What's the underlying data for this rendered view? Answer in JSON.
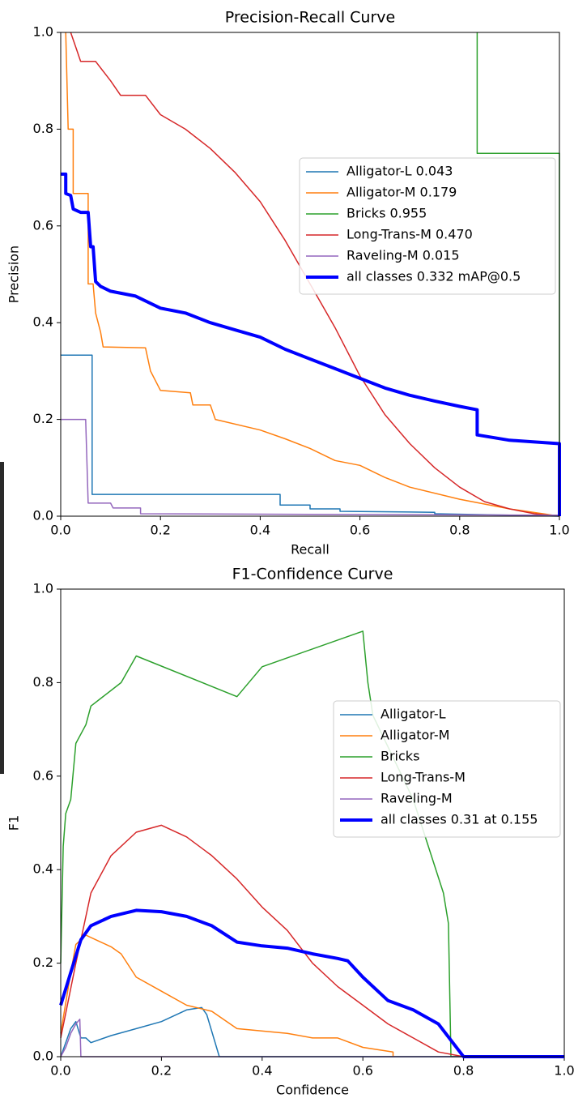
{
  "chart_data": [
    {
      "type": "line",
      "title": "Precision-Recall Curve",
      "xlabel": "Recall",
      "ylabel": "Precision",
      "xlim": [
        0,
        1
      ],
      "ylim": [
        0,
        1
      ],
      "xticks": [
        {
          "value": 0,
          "label": "0.0"
        },
        0.2,
        0.4,
        0.6,
        0.8,
        {
          "value": 1,
          "label": "1.0"
        }
      ],
      "yticks": [
        {
          "value": 0,
          "label": "0.0"
        },
        0.2,
        0.4,
        0.6,
        0.8,
        {
          "value": 1,
          "label": "1.0"
        }
      ],
      "legend": "center right",
      "series": [
        {
          "name": "Alligator-L 0.043",
          "color": "#1f77b4",
          "linewidth": 1.5,
          "x": [
            0,
            0.063,
            0.063,
            0.44,
            0.44,
            0.5,
            0.5,
            0.56,
            0.56,
            0.75,
            0.75,
            1.0
          ],
          "values": [
            0.333,
            0.333,
            0.045,
            0.045,
            0.023,
            0.023,
            0.015,
            0.015,
            0.01,
            0.008,
            0.005,
            0.0
          ]
        },
        {
          "name": "Alligator-M 0.179",
          "color": "#ff7f0e",
          "linewidth": 1.5,
          "x": [
            0.01,
            0.015,
            0.025,
            0.025,
            0.055,
            0.055,
            0.065,
            0.07,
            0.08,
            0.085,
            0.17,
            0.18,
            0.2,
            0.26,
            0.265,
            0.3,
            0.31,
            0.4,
            0.45,
            0.5,
            0.55,
            0.6,
            0.65,
            0.7,
            0.8,
            0.9,
            1.0
          ],
          "values": [
            1.0,
            0.8,
            0.8,
            0.667,
            0.667,
            0.48,
            0.48,
            0.42,
            0.38,
            0.35,
            0.348,
            0.3,
            0.26,
            0.255,
            0.23,
            0.23,
            0.2,
            0.178,
            0.16,
            0.14,
            0.115,
            0.105,
            0.08,
            0.06,
            0.035,
            0.015,
            0.0
          ]
        },
        {
          "name": "Bricks 0.955",
          "color": "#2ca02c",
          "linewidth": 1.5,
          "x": [
            0.835,
            0.835,
            1.0,
            1.0
          ],
          "values": [
            1.0,
            0.75,
            0.75,
            0.0
          ]
        },
        {
          "name": "Long-Trans-M 0.470",
          "color": "#d62728",
          "linewidth": 1.5,
          "x": [
            0.02,
            0.03,
            0.04,
            0.07,
            0.1,
            0.12,
            0.17,
            0.2,
            0.25,
            0.3,
            0.35,
            0.4,
            0.45,
            0.5,
            0.55,
            0.6,
            0.65,
            0.7,
            0.75,
            0.8,
            0.85,
            0.9,
            0.95,
            1.0
          ],
          "values": [
            1.0,
            0.97,
            0.94,
            0.94,
            0.9,
            0.87,
            0.87,
            0.83,
            0.8,
            0.76,
            0.71,
            0.65,
            0.57,
            0.48,
            0.39,
            0.29,
            0.21,
            0.15,
            0.1,
            0.06,
            0.03,
            0.015,
            0.005,
            0.0
          ]
        },
        {
          "name": "Raveling-M 0.015",
          "color": "#9467bd",
          "linewidth": 1.5,
          "x": [
            0,
            0.05,
            0.055,
            0.1,
            0.105,
            0.16,
            0.16,
            1.0
          ],
          "values": [
            0.2,
            0.2,
            0.027,
            0.027,
            0.017,
            0.017,
            0.005,
            0.002
          ]
        },
        {
          "name": "all classes 0.332 mAP@0.5",
          "color": "#0000ff",
          "linewidth": 4,
          "x": [
            0,
            0.01,
            0.01,
            0.02,
            0.025,
            0.04,
            0.055,
            0.06,
            0.065,
            0.07,
            0.08,
            0.1,
            0.15,
            0.2,
            0.25,
            0.3,
            0.35,
            0.4,
            0.45,
            0.5,
            0.55,
            0.6,
            0.65,
            0.7,
            0.75,
            0.8,
            0.835,
            0.835,
            0.9,
            1.0,
            1.0
          ],
          "values": [
            0.707,
            0.707,
            0.667,
            0.663,
            0.635,
            0.628,
            0.628,
            0.557,
            0.557,
            0.485,
            0.475,
            0.465,
            0.455,
            0.43,
            0.42,
            0.4,
            0.385,
            0.37,
            0.345,
            0.325,
            0.305,
            0.285,
            0.265,
            0.25,
            0.238,
            0.227,
            0.22,
            0.168,
            0.157,
            0.15,
            0.0
          ]
        }
      ]
    },
    {
      "type": "line",
      "title": "F1-Confidence Curve",
      "xlabel": "Confidence",
      "ylabel": "F1",
      "xlim": [
        0,
        1
      ],
      "ylim": [
        0,
        1
      ],
      "xticks": [
        {
          "value": 0,
          "label": "0.0"
        },
        0.2,
        0.4,
        0.6,
        0.8,
        {
          "value": 1,
          "label": "1.0"
        }
      ],
      "yticks": [
        {
          "value": 0,
          "label": "0.0"
        },
        0.2,
        0.4,
        0.6,
        0.8,
        {
          "value": 1,
          "label": "1.0"
        }
      ],
      "legend": "center right",
      "series": [
        {
          "name": "Alligator-L",
          "color": "#1f77b4",
          "linewidth": 1.5,
          "x": [
            0,
            0.01,
            0.02,
            0.03,
            0.04,
            0.05,
            0.06,
            0.1,
            0.15,
            0.2,
            0.25,
            0.28,
            0.29,
            0.315,
            1.0
          ],
          "values": [
            0,
            0.03,
            0.06,
            0.075,
            0.04,
            0.04,
            0.03,
            0.045,
            0.06,
            0.075,
            0.1,
            0.105,
            0.09,
            0,
            0
          ]
        },
        {
          "name": "Alligator-M",
          "color": "#ff7f0e",
          "linewidth": 1.5,
          "x": [
            0,
            0.02,
            0.03,
            0.05,
            0.07,
            0.1,
            0.12,
            0.15,
            0.2,
            0.25,
            0.3,
            0.35,
            0.45,
            0.5,
            0.55,
            0.6,
            0.66,
            0.66
          ],
          "values": [
            0.05,
            0.18,
            0.24,
            0.26,
            0.25,
            0.235,
            0.22,
            0.17,
            0.14,
            0.11,
            0.097,
            0.06,
            0.05,
            0.04,
            0.04,
            0.02,
            0.01,
            0
          ]
        },
        {
          "name": "Bricks",
          "color": "#2ca02c",
          "linewidth": 1.5,
          "x": [
            0,
            0.005,
            0.01,
            0.02,
            0.03,
            0.05,
            0.06,
            0.12,
            0.15,
            0.35,
            0.4,
            0.6,
            0.61,
            0.62,
            0.7,
            0.76,
            0.77,
            0.775,
            1.0
          ],
          "values": [
            0.2,
            0.45,
            0.52,
            0.55,
            0.67,
            0.71,
            0.75,
            0.8,
            0.857,
            0.77,
            0.834,
            0.91,
            0.8,
            0.73,
            0.55,
            0.35,
            0.285,
            0,
            0
          ]
        },
        {
          "name": "Long-Trans-M",
          "color": "#d62728",
          "linewidth": 1.5,
          "x": [
            0,
            0.03,
            0.06,
            0.1,
            0.15,
            0.2,
            0.25,
            0.3,
            0.35,
            0.4,
            0.45,
            0.5,
            0.55,
            0.6,
            0.65,
            0.7,
            0.75,
            0.8,
            1.0
          ],
          "values": [
            0.04,
            0.2,
            0.35,
            0.43,
            0.48,
            0.495,
            0.47,
            0.43,
            0.38,
            0.32,
            0.27,
            0.2,
            0.15,
            0.11,
            0.07,
            0.04,
            0.01,
            0,
            0
          ]
        },
        {
          "name": "Raveling-M",
          "color": "#9467bd",
          "linewidth": 1.5,
          "x": [
            0,
            0.01,
            0.02,
            0.03,
            0.038,
            0.04,
            1.0
          ],
          "values": [
            0,
            0.02,
            0.05,
            0.07,
            0.08,
            0,
            0
          ]
        },
        {
          "name": "all classes 0.31 at 0.155",
          "color": "#0000ff",
          "linewidth": 4,
          "x": [
            0,
            0.02,
            0.04,
            0.06,
            0.1,
            0.15,
            0.2,
            0.25,
            0.3,
            0.35,
            0.4,
            0.45,
            0.5,
            0.55,
            0.57,
            0.6,
            0.65,
            0.7,
            0.75,
            0.8,
            1.0
          ],
          "values": [
            0.11,
            0.18,
            0.25,
            0.28,
            0.3,
            0.313,
            0.31,
            0.3,
            0.28,
            0.245,
            0.237,
            0.232,
            0.22,
            0.21,
            0.205,
            0.17,
            0.12,
            0.1,
            0.07,
            0,
            0
          ]
        }
      ]
    }
  ]
}
